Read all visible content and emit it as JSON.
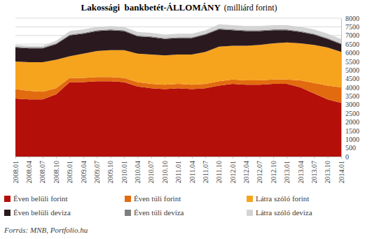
{
  "chart_data": {
    "type": "area",
    "stacked": true,
    "title": "Lakossági  bankbetét-ÁLLOMÁNY",
    "subtitle": "(milliárd forint)",
    "annotation": "Forrás: MNB, Portfolio.hu",
    "categories": [
      "2008.01",
      "2008.04",
      "2008.07",
      "2008.10",
      "2009.01",
      "2009.04",
      "2009.07",
      "2009.10",
      "2010.01",
      "2010.04",
      "2010.07",
      "2010.10",
      "2011.01",
      "2011.04",
      "2011.07",
      "2011.10",
      "2012.01",
      "2012.04",
      "2012.07",
      "2012.10",
      "2013.01",
      "2013.04",
      "2013.07",
      "2013.10",
      "2014.01"
    ],
    "series": [
      {
        "name": "Éven belüli forint",
        "color": "#b50f0a",
        "values": [
          3350,
          3300,
          3300,
          3600,
          4300,
          4300,
          4350,
          4350,
          4300,
          4050,
          3950,
          3900,
          3950,
          3900,
          3950,
          4100,
          4200,
          4150,
          4150,
          4200,
          4200,
          4000,
          3650,
          3300,
          3100
        ]
      },
      {
        "name": "Éven túli forint",
        "color": "#e26b0f",
        "values": [
          550,
          500,
          450,
          350,
          250,
          250,
          250,
          250,
          250,
          250,
          250,
          250,
          250,
          250,
          250,
          250,
          250,
          250,
          250,
          250,
          250,
          400,
          600,
          800,
          900
        ]
      },
      {
        "name": "Látra szóló forint",
        "color": "#f6a31e",
        "values": [
          1600,
          1650,
          1700,
          1650,
          1250,
          1400,
          1500,
          1550,
          1600,
          1650,
          1700,
          1700,
          1700,
          1750,
          1850,
          2000,
          1950,
          2000,
          2050,
          2100,
          2150,
          2150,
          2200,
          2200,
          2050
        ]
      },
      {
        "name": "Éven belüli deviza",
        "color": "#2a1a20",
        "values": [
          800,
          800,
          800,
          900,
          1200,
          1150,
          1150,
          1150,
          1100,
          1000,
          1000,
          950,
          950,
          950,
          1000,
          1000,
          900,
          850,
          800,
          750,
          700,
          650,
          600,
          500,
          450
        ]
      },
      {
        "name": "Éven túli deviza",
        "color": "#7f7f7f",
        "values": [
          50,
          50,
          50,
          50,
          50,
          50,
          50,
          50,
          50,
          50,
          50,
          50,
          50,
          50,
          50,
          50,
          50,
          50,
          50,
          50,
          50,
          50,
          50,
          50,
          50
        ]
      },
      {
        "name": "Látra szóló deviza",
        "color": "#d4d4d4",
        "values": [
          100,
          100,
          100,
          150,
          200,
          200,
          200,
          200,
          200,
          200,
          200,
          200,
          200,
          200,
          200,
          250,
          250,
          250,
          250,
          250,
          250,
          250,
          250,
          250,
          250
        ]
      }
    ],
    "ylim": [
      0,
      8000
    ],
    "yticks": [
      0,
      500,
      1000,
      1500,
      2000,
      2500,
      3000,
      3500,
      4000,
      4500,
      5000,
      5500,
      6000,
      6500,
      7000,
      7500,
      8000
    ],
    "grid": true,
    "legend": "bottom"
  }
}
